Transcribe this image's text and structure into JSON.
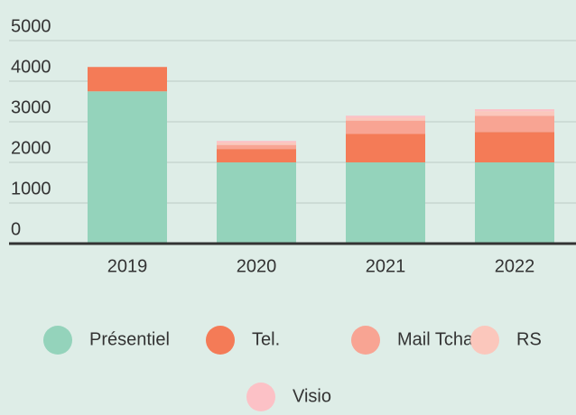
{
  "chart_data": {
    "type": "stacked_bar",
    "categories": [
      "2019",
      "2020",
      "2021",
      "2022"
    ],
    "series": [
      {
        "name": "Présentiel",
        "color": "#94d3bb",
        "values": [
          3750,
          2000,
          2000,
          2000
        ]
      },
      {
        "name": "Tel.",
        "color": "#f47b57",
        "values": [
          600,
          330,
          700,
          750
        ]
      },
      {
        "name": "Mail Tchat",
        "color": "#f8a493",
        "values": [
          0,
          100,
          330,
          400
        ]
      },
      {
        "name": "RS",
        "color": "#fbc7bc",
        "values": [
          0,
          60,
          70,
          110
        ]
      },
      {
        "name": "Visio",
        "color": "#fcc1c6",
        "values": [
          0,
          40,
          50,
          50
        ]
      }
    ],
    "ylim": [
      0,
      5000
    ],
    "yticks": [
      0,
      1000,
      2000,
      3000,
      4000,
      5000
    ],
    "grid": true
  }
}
